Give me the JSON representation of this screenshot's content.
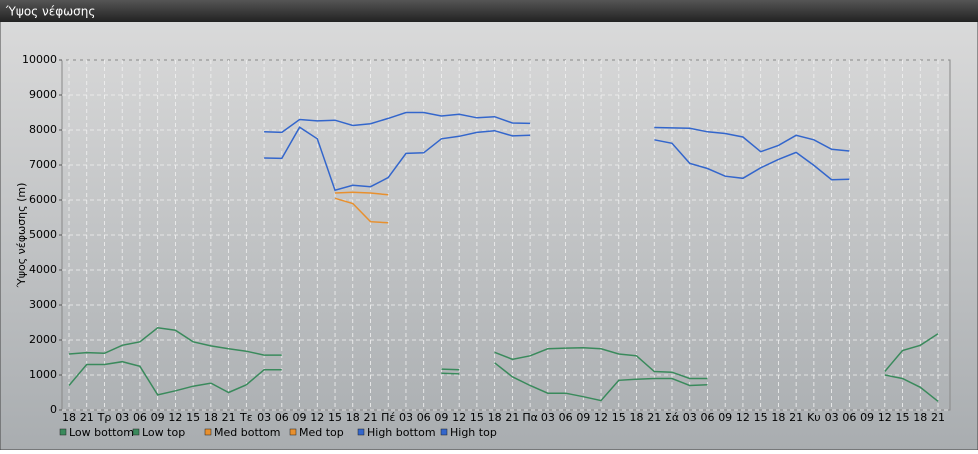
{
  "window_title": "Ύψος νέφωσης",
  "chart_data": {
    "type": "line",
    "y_label": "Ύψος νέφωσης (m)",
    "categories": [
      "18",
      "21",
      "Τρ",
      "03",
      "06",
      "09",
      "12",
      "15",
      "18",
      "21",
      "Τε",
      "03",
      "06",
      "09",
      "12",
      "15",
      "18",
      "21",
      "Πέ",
      "03",
      "06",
      "09",
      "12",
      "15",
      "18",
      "21",
      "Πα",
      "03",
      "06",
      "09",
      "12",
      "15",
      "18",
      "21",
      "Σά",
      "03",
      "06",
      "09",
      "12",
      "15",
      "18",
      "21",
      "Κυ",
      "03",
      "06",
      "09",
      "12",
      "15",
      "18",
      "21"
    ],
    "ylim": [
      0,
      10000
    ],
    "yticks": [
      0,
      1000,
      2000,
      3000,
      4000,
      5000,
      6000,
      7000,
      8000,
      9000,
      10000
    ],
    "grid": true,
    "legend": "bottom-left",
    "series": [
      {
        "name": "Low bottom",
        "color": "#3a8a5c",
        "values": [
          700,
          1300,
          1300,
          1380,
          1250,
          430,
          550,
          680,
          770,
          500,
          720,
          1150,
          1150,
          null,
          null,
          null,
          null,
          null,
          null,
          null,
          null,
          1050,
          1030,
          null,
          1350,
          950,
          700,
          480,
          480,
          380,
          270,
          850,
          880,
          900,
          900,
          700,
          720,
          null,
          null,
          null,
          null,
          null,
          null,
          null,
          null,
          null,
          1000,
          900,
          650,
          250
        ]
      },
      {
        "name": "Low top",
        "color": "#3a8a5c",
        "values": [
          1600,
          1640,
          1620,
          1850,
          1950,
          2350,
          2280,
          1950,
          1830,
          1750,
          1680,
          1570,
          1570,
          null,
          null,
          null,
          null,
          null,
          null,
          null,
          null,
          1170,
          1150,
          null,
          1650,
          1450,
          1550,
          1750,
          1770,
          1780,
          1750,
          1600,
          1550,
          1100,
          1080,
          900,
          900,
          null,
          null,
          null,
          null,
          null,
          null,
          null,
          null,
          null,
          1100,
          1700,
          1850,
          2180
        ]
      },
      {
        "name": "Med bottom",
        "color": "#e8902e",
        "values": [
          null,
          null,
          null,
          null,
          null,
          null,
          null,
          null,
          null,
          null,
          null,
          null,
          null,
          null,
          null,
          6050,
          5900,
          5380,
          5350,
          null,
          null,
          null,
          null,
          null,
          null,
          null,
          null,
          null,
          null,
          null,
          null,
          null,
          null,
          null,
          null,
          null,
          null,
          null,
          null,
          null,
          null,
          null,
          null,
          null,
          null,
          null,
          null,
          null,
          null,
          null
        ]
      },
      {
        "name": "Med top",
        "color": "#e8902e",
        "values": [
          null,
          null,
          null,
          null,
          null,
          null,
          null,
          null,
          null,
          null,
          null,
          null,
          null,
          null,
          null,
          6200,
          6220,
          6200,
          6150,
          null,
          null,
          null,
          null,
          null,
          null,
          null,
          null,
          null,
          null,
          null,
          null,
          null,
          null,
          null,
          null,
          null,
          null,
          null,
          null,
          null,
          null,
          null,
          null,
          null,
          null,
          null,
          null,
          null,
          null,
          null
        ]
      },
      {
        "name": "High bottom",
        "color": "#3366cc",
        "values": [
          null,
          null,
          null,
          null,
          null,
          null,
          null,
          null,
          null,
          null,
          null,
          7200,
          7190,
          8080,
          7750,
          6280,
          6420,
          6380,
          6640,
          7330,
          7350,
          7750,
          7820,
          7930,
          7980,
          7830,
          7850,
          null,
          null,
          null,
          null,
          null,
          null,
          7720,
          7620,
          7050,
          6900,
          6680,
          6620,
          6920,
          7160,
          7360,
          6990,
          6580,
          6590,
          null,
          null,
          null,
          null,
          null
        ]
      },
      {
        "name": "High top",
        "color": "#3366cc",
        "values": [
          null,
          null,
          null,
          null,
          null,
          null,
          null,
          null,
          null,
          null,
          null,
          7950,
          7930,
          8300,
          8260,
          8280,
          8130,
          8180,
          8330,
          8500,
          8500,
          8400,
          8450,
          8350,
          8380,
          8200,
          8190,
          null,
          null,
          null,
          null,
          null,
          null,
          8070,
          8060,
          8050,
          7950,
          7900,
          7800,
          7380,
          7560,
          7850,
          7720,
          7450,
          7400,
          null,
          null,
          null,
          null,
          null
        ]
      }
    ]
  }
}
